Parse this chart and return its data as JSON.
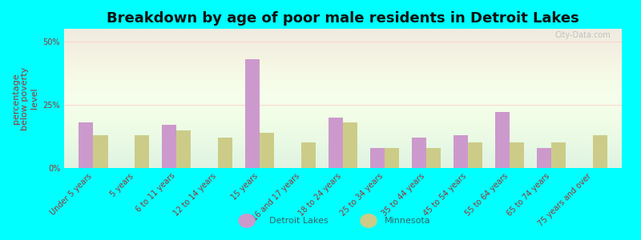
{
  "title": "Breakdown by age of poor male residents in Detroit Lakes",
  "ylabel": "percentage\nbelow poverty\nlevel",
  "categories": [
    "Under 5 years",
    "5 years",
    "6 to 11 years",
    "12 to 14 years",
    "15 years",
    "16 and 17 years",
    "18 to 24 years",
    "25 to 34 years",
    "35 to 44 years",
    "45 to 54 years",
    "55 to 64 years",
    "65 to 74 years",
    "75 years and over"
  ],
  "detroit_lakes": [
    18,
    0,
    17,
    0,
    43,
    0,
    20,
    8,
    12,
    13,
    22,
    8,
    0
  ],
  "minnesota": [
    13,
    13,
    15,
    12,
    14,
    10,
    18,
    8,
    8,
    10,
    10,
    10,
    13
  ],
  "detroit_color": "#cc99cc",
  "minnesota_color": "#cccc88",
  "background_color": "#00ffff",
  "plot_bg": "#f5fff0",
  "ylim": [
    0,
    55
  ],
  "yticks": [
    0,
    25,
    50
  ],
  "ytick_labels": [
    "0%",
    "25%",
    "50%"
  ],
  "bar_width": 0.35,
  "title_fontsize": 13,
  "axis_label_fontsize": 8,
  "tick_fontsize": 7,
  "legend_labels": [
    "Detroit Lakes",
    "Minnesota"
  ],
  "legend_text_color": "#336666",
  "watermark": "City-Data.com"
}
